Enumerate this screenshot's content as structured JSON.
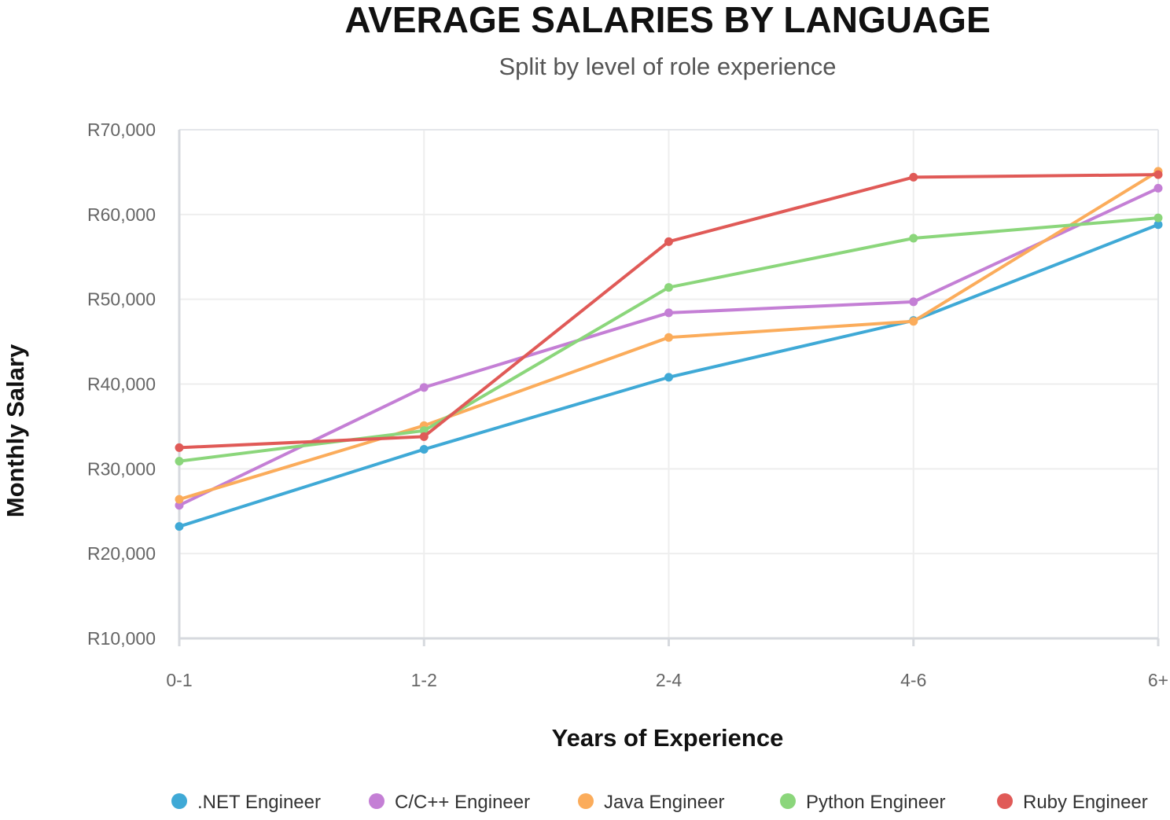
{
  "chart_data": {
    "type": "line",
    "title": "AVERAGE SALARIES BY LANGUAGE",
    "subtitle": "Split by level of role experience",
    "xlabel": "Years of Experience",
    "ylabel": "Monthly Salary",
    "categories": [
      "0-1",
      "1-2",
      "2-4",
      "4-6",
      "6+"
    ],
    "ylim": [
      10000,
      70000
    ],
    "yticks": [
      10000,
      20000,
      30000,
      40000,
      50000,
      60000,
      70000
    ],
    "ytick_labels": [
      "R10,000",
      "R20,000",
      "R30,000",
      "R40,000",
      "R50,000",
      "R60,000",
      "R70,000"
    ],
    "grid": true,
    "legend_position": "bottom",
    "series": [
      {
        "name": ".NET Engineer",
        "color": "#3fa9d6",
        "values": [
          23200,
          32300,
          40800,
          47500,
          58800
        ]
      },
      {
        "name": "C/C++ Engineer",
        "color": "#c47fd5",
        "values": [
          25700,
          39600,
          48400,
          49700,
          63100
        ]
      },
      {
        "name": "Java Engineer",
        "color": "#fbac5b",
        "values": [
          26400,
          35100,
          45500,
          47400,
          65100
        ]
      },
      {
        "name": "Python Engineer",
        "color": "#8bd67b",
        "values": [
          30900,
          34500,
          51400,
          57200,
          59600
        ]
      },
      {
        "name": "Ruby Engineer",
        "color": "#e05a57",
        "values": [
          32500,
          33800,
          56800,
          64400,
          64700
        ]
      }
    ]
  }
}
